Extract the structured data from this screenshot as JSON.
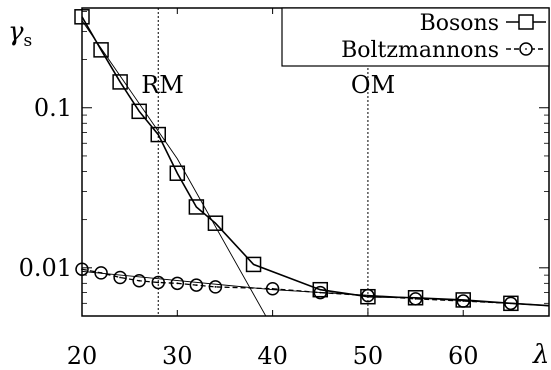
{
  "chart_data": {
    "type": "line",
    "ylabel": "γs",
    "ylabel_base": "γ",
    "ylabel_sub": "s",
    "xlabel": "λ",
    "xlim": [
      20,
      69
    ],
    "ylim": [
      0.005,
      0.42
    ],
    "yscale": "log",
    "x_ticks": [
      20,
      30,
      40,
      50,
      60
    ],
    "x_tick_labels": [
      "20",
      "30",
      "40",
      "50",
      "60"
    ],
    "y_ticks": [
      0.1,
      0.01
    ],
    "y_tick_labels": [
      "0.1",
      "0.01"
    ],
    "legend_position": "top-right",
    "series": [
      {
        "name": "Bosons",
        "marker": "square",
        "line": "solid",
        "x": [
          20,
          22,
          24,
          26,
          28,
          30,
          32,
          34,
          38,
          45,
          50,
          55,
          60,
          65,
          69
        ],
        "y": [
          0.37,
          0.23,
          0.145,
          0.095,
          0.068,
          0.039,
          0.024,
          0.019,
          0.0105,
          0.0073,
          0.0066,
          0.0065,
          0.0063,
          0.006,
          0.0058
        ]
      },
      {
        "name": "Boltzmannons",
        "marker": "circle",
        "line": "dashed",
        "x": [
          20,
          22,
          24,
          26,
          28,
          30,
          32,
          34,
          40,
          45,
          50,
          55,
          60,
          65,
          69
        ],
        "y": [
          0.0098,
          0.0093,
          0.0087,
          0.0083,
          0.0081,
          0.008,
          0.0078,
          0.0076,
          0.0074,
          0.007,
          0.0067,
          0.0064,
          0.0062,
          0.006,
          0.0058
        ]
      }
    ],
    "fit_lines": [
      {
        "x": [
          20,
          30,
          40
        ],
        "y": [
          0.35,
          0.048,
          0.0042
        ]
      },
      {
        "x": [
          20,
          40,
          69
        ],
        "y": [
          0.0095,
          0.0073,
          0.0058
        ]
      }
    ],
    "vlines": [
      {
        "x": 28,
        "label": "RM"
      },
      {
        "x": 50,
        "label": "OM"
      }
    ]
  }
}
